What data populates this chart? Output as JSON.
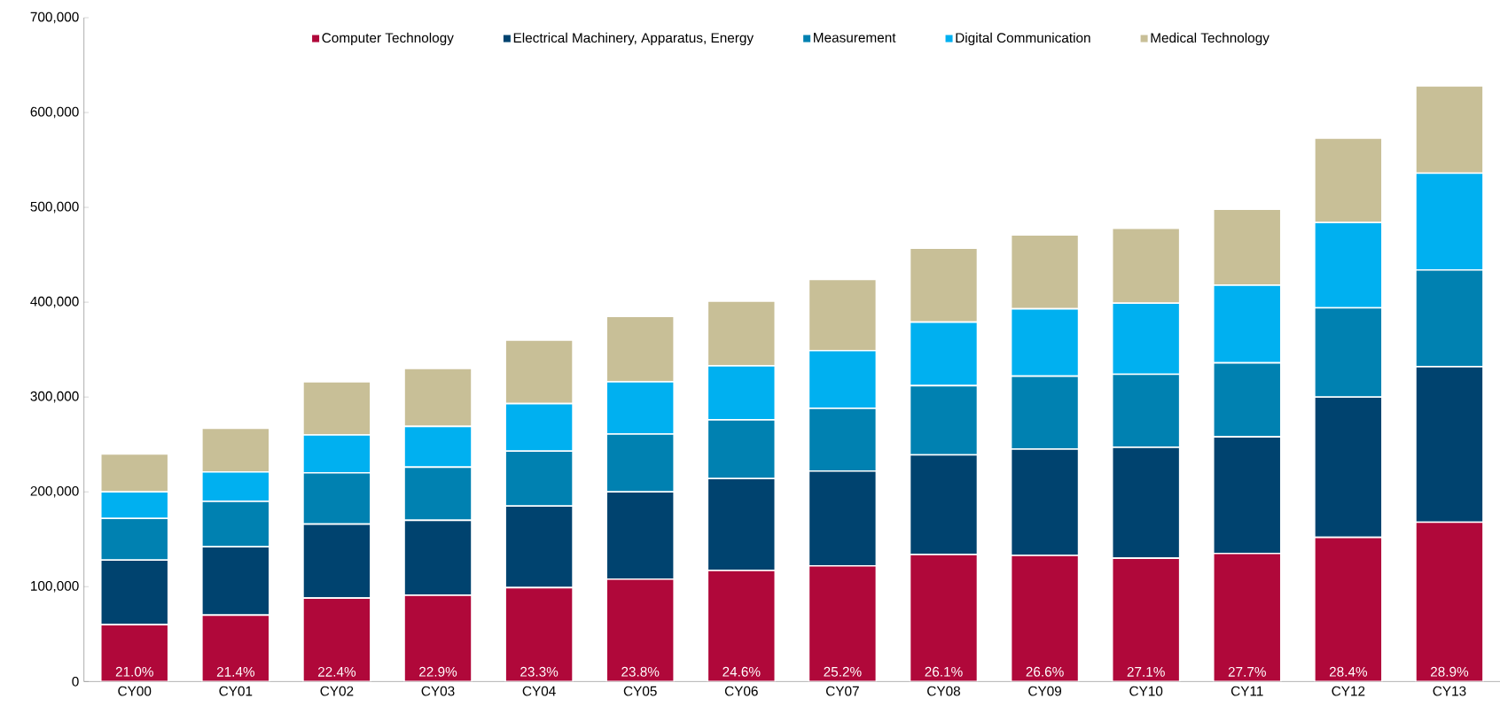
{
  "chart_data": {
    "type": "bar",
    "stacked": true,
    "legend": "top",
    "categories": [
      "CY00",
      "CY01",
      "CY02",
      "CY03",
      "CY04",
      "CY05",
      "CY06",
      "CY07",
      "CY08",
      "CY09",
      "CY10",
      "CY11",
      "CY12",
      "CY13"
    ],
    "ylim": [
      0,
      700000
    ],
    "annotations": [
      {
        "text": "21.0%",
        "x": "CY00",
        "y": 0
      },
      {
        "text": "21.4%",
        "x": "CY01",
        "y": 0
      },
      {
        "text": "22.4%",
        "x": "CY02",
        "y": 0
      },
      {
        "text": "22.9%",
        "x": "CY03",
        "y": 0
      },
      {
        "text": "23.3%",
        "x": "CY04",
        "y": 0
      },
      {
        "text": "23.8%",
        "x": "CY05",
        "y": 0
      },
      {
        "text": "24.6%",
        "x": "CY06",
        "y": 0
      },
      {
        "text": "25.2%",
        "x": "CY07",
        "y": 0
      },
      {
        "text": "26.1%",
        "x": "CY08",
        "y": 0
      },
      {
        "text": "26.6%",
        "x": "CY09",
        "y": 0
      },
      {
        "text": "27.1%",
        "x": "CY10",
        "y": 0
      },
      {
        "text": "27.7%",
        "x": "CY11",
        "y": 0
      },
      {
        "text": "28.4%",
        "x": "CY12",
        "y": 0
      },
      {
        "text": "28.9%",
        "x": "CY13",
        "y": 0
      }
    ],
    "yticks": [
      0,
      {
        "value": 100000,
        "label": "100,000"
      },
      {
        "value": 200000,
        "label": "200,000"
      },
      {
        "value": 300000,
        "label": "300,000"
      },
      {
        "value": 400000,
        "label": "400,000"
      },
      {
        "value": 500000,
        "label": "500,000"
      },
      {
        "value": 600000,
        "label": "600,000"
      },
      {
        "value": 700000,
        "label": "700,000"
      }
    ],
    "series": [
      {
        "name": "Computer Technology",
        "color": "#b0083a",
        "values": [
          60000,
          70000,
          88000,
          91000,
          99000,
          108000,
          117000,
          122000,
          134000,
          133000,
          130000,
          135000,
          152000,
          168000
        ]
      },
      {
        "name": "Electrical Machinery, Apparatus, Energy",
        "color": "#00436f",
        "values": [
          68000,
          72000,
          78000,
          79000,
          86000,
          92000,
          97000,
          100000,
          105000,
          112000,
          117000,
          123000,
          148000,
          164000
        ]
      },
      {
        "name": "Measurement",
        "color": "#0081b1",
        "values": [
          44000,
          48000,
          54000,
          56000,
          58000,
          61000,
          62000,
          66000,
          73000,
          77000,
          77000,
          78000,
          94000,
          102000
        ]
      },
      {
        "name": "Digital Communication",
        "color": "#00b0f0",
        "values": [
          28000,
          31000,
          40000,
          43000,
          50000,
          55000,
          57000,
          61000,
          67000,
          71000,
          75000,
          82000,
          90000,
          102000
        ]
      },
      {
        "name": "Medical Technology",
        "color": "#c8bf97",
        "values": [
          40000,
          46000,
          56000,
          61000,
          67000,
          69000,
          68000,
          75000,
          78000,
          78000,
          79000,
          80000,
          89000,
          92000
        ]
      }
    ]
  }
}
